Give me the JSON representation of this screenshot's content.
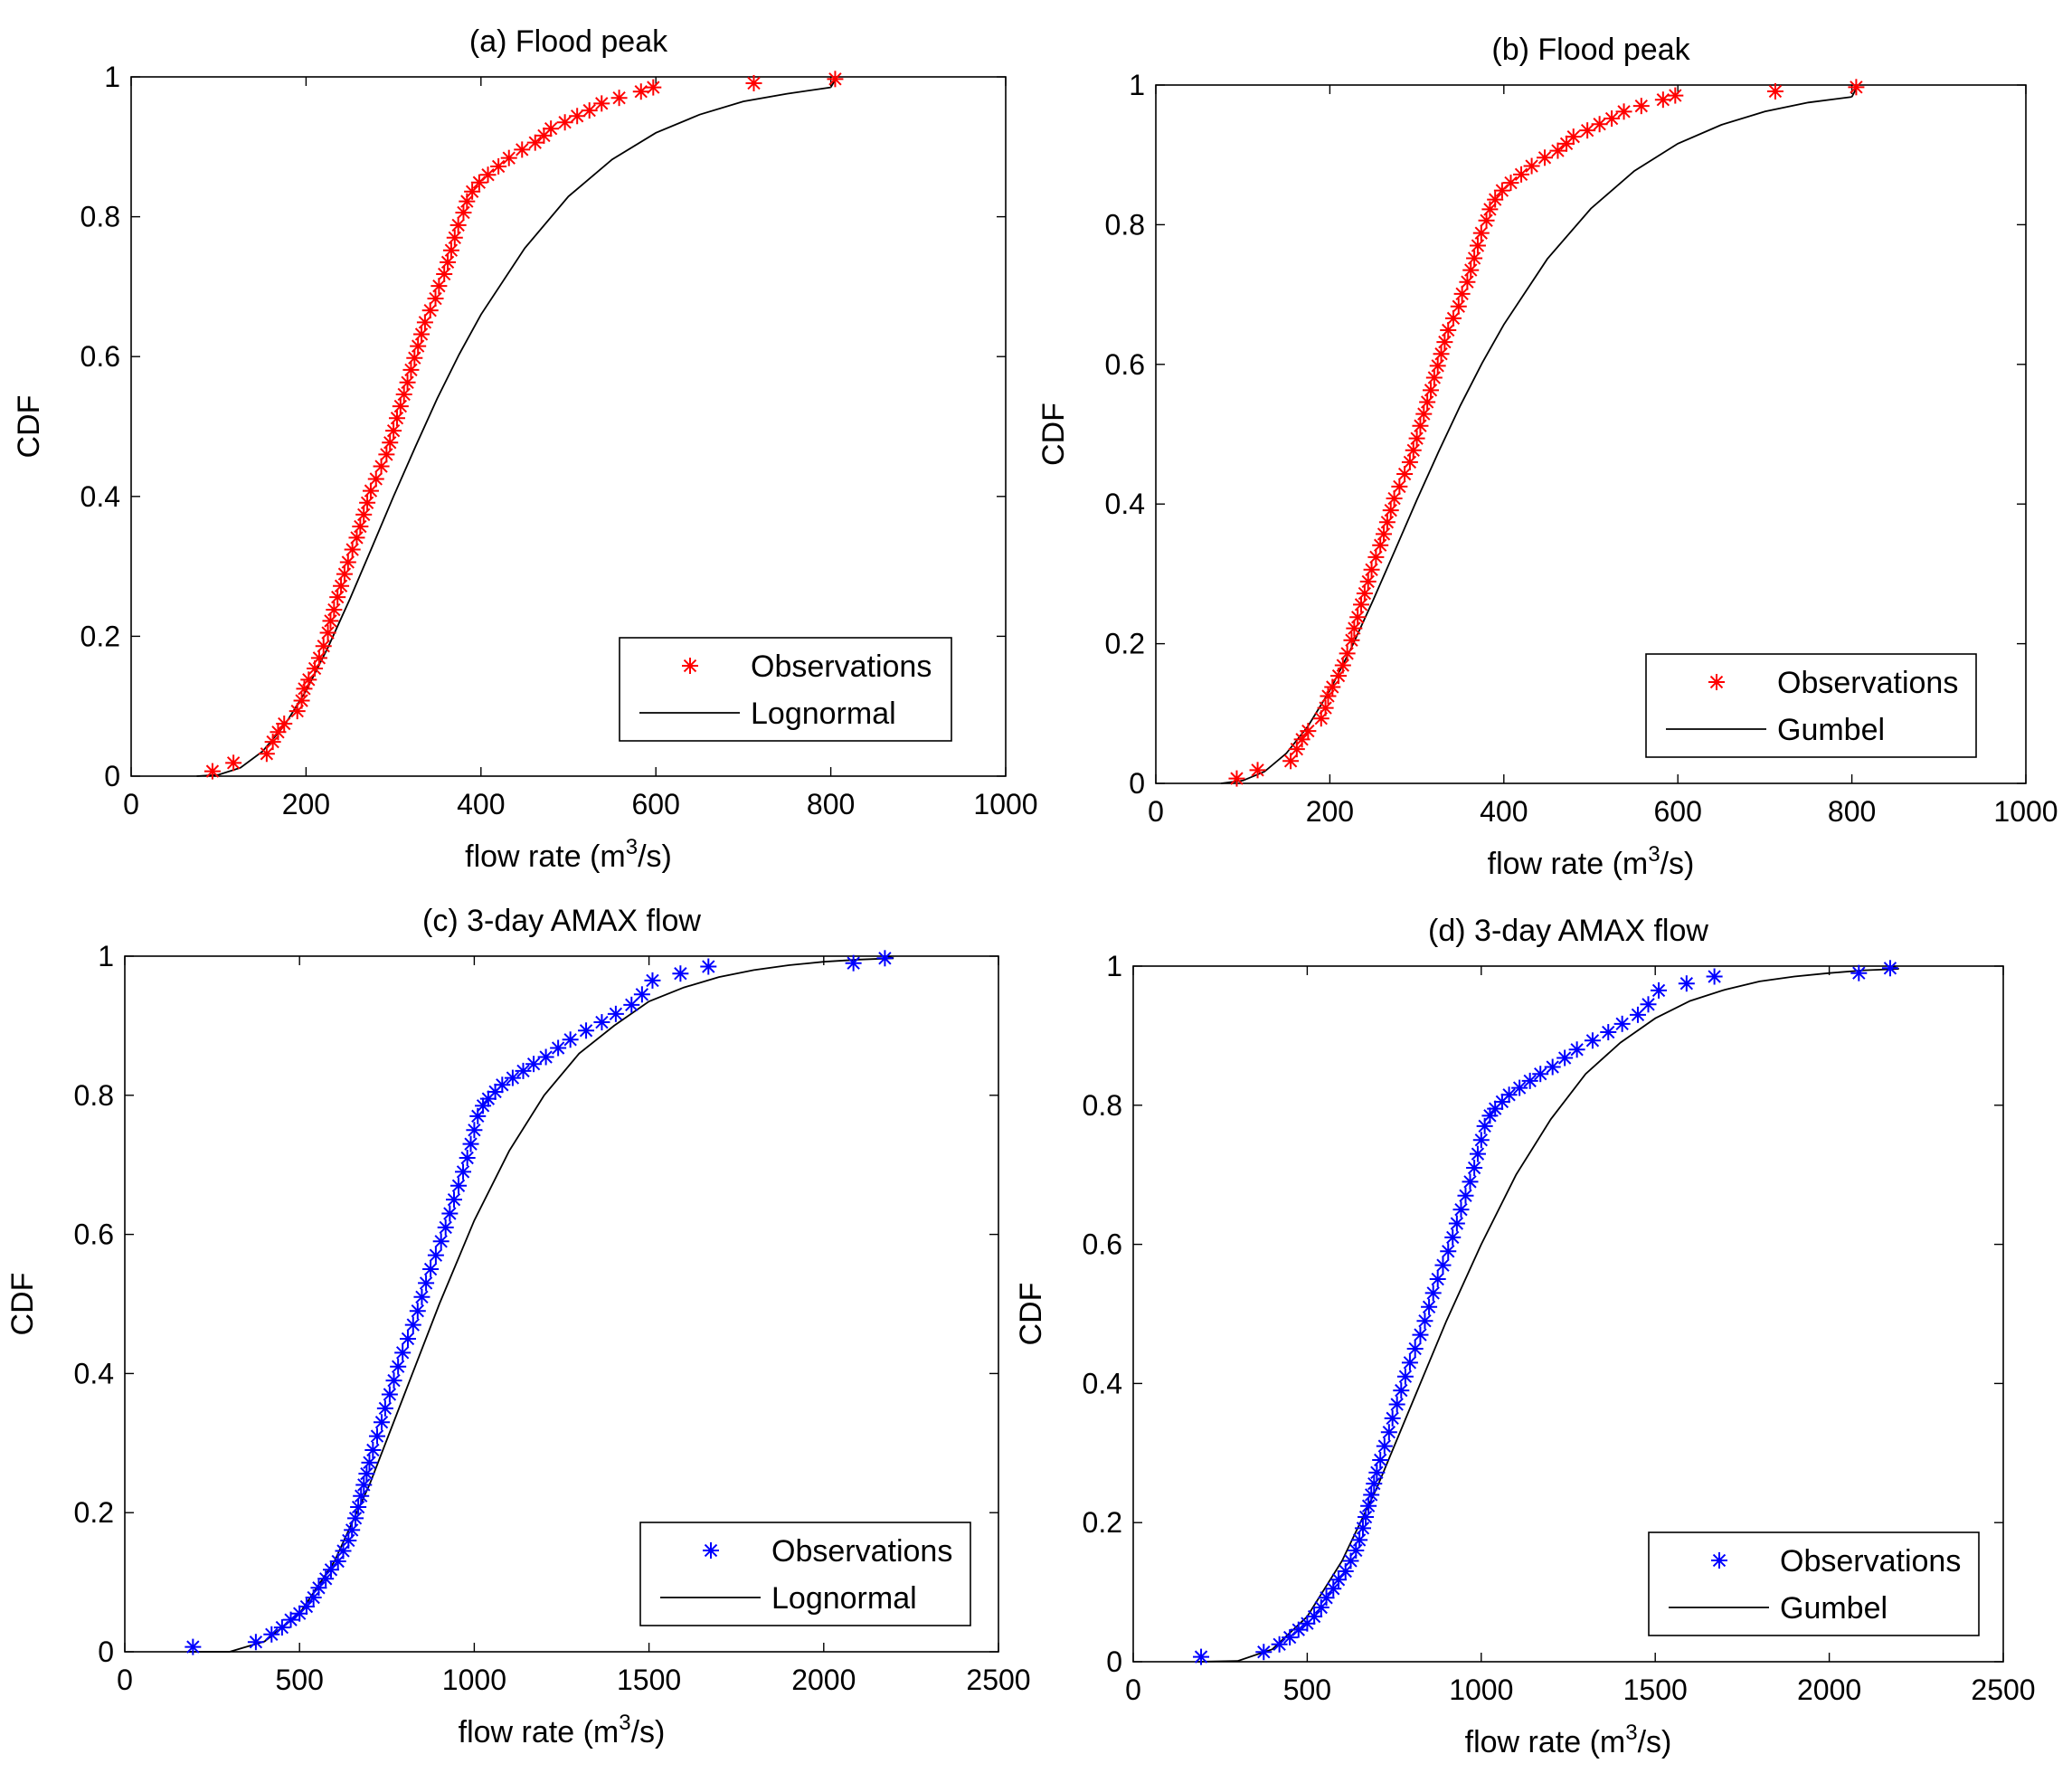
{
  "chart_data": [
    {
      "id": "a",
      "type": "scatter",
      "title": "(a) Flood peak",
      "xlabel": "flow rate (m",
      "xlabel_sup": "3",
      "xlabel_end": "/s)",
      "ylabel": "CDF",
      "xlim": [
        0,
        1000
      ],
      "ylim": [
        0,
        1
      ],
      "xticks": [
        0,
        200,
        400,
        600,
        800,
        1000
      ],
      "xtick_labels": [
        "0",
        "200",
        "400",
        "600",
        "800",
        "1000"
      ],
      "yticks": [
        0,
        0.2,
        0.4,
        0.6,
        0.8,
        1
      ],
      "ytick_labels": [
        "0",
        "0.2",
        "0.4",
        "0.6",
        "0.8",
        "1"
      ],
      "legend_position": "bottom-right",
      "marker_color": "#ff0000",
      "observations": {
        "name": "Observations",
        "x": [
          93,
          117,
          155,
          162,
          168,
          175,
          190,
          195,
          198,
          203,
          210,
          215,
          220,
          225,
          228,
          232,
          236,
          240,
          244,
          248,
          253,
          258,
          262,
          266,
          270,
          274,
          280,
          286,
          292,
          296,
          300,
          304,
          308,
          312,
          316,
          320,
          324,
          328,
          332,
          336,
          342,
          348,
          352,
          358,
          362,
          366,
          370,
          374,
          380,
          384,
          390,
          398,
          408,
          420,
          432,
          447,
          462,
          472,
          480,
          496,
          510,
          524,
          538,
          558,
          583,
          597,
          712,
          805
        ],
        "y": [
          0.007,
          0.019,
          0.032,
          0.049,
          0.063,
          0.075,
          0.093,
          0.108,
          0.125,
          0.138,
          0.154,
          0.169,
          0.186,
          0.205,
          0.222,
          0.238,
          0.256,
          0.272,
          0.289,
          0.306,
          0.324,
          0.341,
          0.357,
          0.374,
          0.391,
          0.408,
          0.425,
          0.443,
          0.46,
          0.477,
          0.494,
          0.512,
          0.529,
          0.546,
          0.563,
          0.581,
          0.598,
          0.615,
          0.632,
          0.649,
          0.666,
          0.683,
          0.701,
          0.718,
          0.735,
          0.752,
          0.77,
          0.788,
          0.806,
          0.822,
          0.836,
          0.849,
          0.86,
          0.872,
          0.884,
          0.896,
          0.906,
          0.916,
          0.926,
          0.935,
          0.944,
          0.952,
          0.962,
          0.97,
          0.979,
          0.985,
          0.991,
          0.997
        ]
      },
      "fit": {
        "name": "Lognormal",
        "x": [
          75,
          100,
          125,
          150,
          175,
          200,
          225,
          250,
          275,
          300,
          325,
          350,
          375,
          400,
          450,
          500,
          550,
          600,
          650,
          700,
          750,
          800
        ],
        "y": [
          0.0,
          0.002,
          0.012,
          0.035,
          0.072,
          0.122,
          0.184,
          0.253,
          0.326,
          0.4,
          0.471,
          0.54,
          0.603,
          0.66,
          0.755,
          0.829,
          0.882,
          0.92,
          0.946,
          0.965,
          0.976,
          0.985
        ]
      }
    },
    {
      "id": "b",
      "type": "scatter",
      "title": "(b) Flood peak",
      "xlabel": "flow rate (m",
      "xlabel_sup": "3",
      "xlabel_end": "/s)",
      "ylabel": "CDF",
      "xlim": [
        0,
        1000
      ],
      "ylim": [
        0,
        1
      ],
      "xticks": [
        0,
        200,
        400,
        600,
        800,
        1000
      ],
      "xtick_labels": [
        "0",
        "200",
        "400",
        "600",
        "800",
        "1000"
      ],
      "yticks": [
        0,
        0.2,
        0.4,
        0.6,
        0.8,
        1
      ],
      "ytick_labels": [
        "0",
        "0.2",
        "0.4",
        "0.6",
        "0.8",
        "1"
      ],
      "legend_position": "bottom-right",
      "marker_color": "#ff0000",
      "observations": {
        "name": "Observations",
        "x": [
          93,
          117,
          155,
          162,
          168,
          175,
          190,
          195,
          198,
          203,
          210,
          215,
          220,
          225,
          228,
          232,
          236,
          240,
          244,
          248,
          253,
          258,
          262,
          266,
          270,
          274,
          280,
          286,
          292,
          296,
          300,
          304,
          308,
          312,
          316,
          320,
          324,
          328,
          332,
          336,
          342,
          348,
          352,
          358,
          362,
          366,
          370,
          374,
          380,
          384,
          390,
          398,
          408,
          420,
          432,
          447,
          462,
          472,
          480,
          496,
          510,
          524,
          538,
          558,
          583,
          597,
          712,
          805
        ],
        "y": [
          0.007,
          0.019,
          0.032,
          0.049,
          0.063,
          0.075,
          0.093,
          0.108,
          0.125,
          0.138,
          0.154,
          0.169,
          0.186,
          0.205,
          0.222,
          0.238,
          0.256,
          0.272,
          0.289,
          0.306,
          0.324,
          0.341,
          0.357,
          0.374,
          0.391,
          0.408,
          0.425,
          0.443,
          0.46,
          0.477,
          0.494,
          0.512,
          0.529,
          0.546,
          0.563,
          0.581,
          0.598,
          0.615,
          0.632,
          0.649,
          0.666,
          0.683,
          0.701,
          0.718,
          0.735,
          0.752,
          0.77,
          0.788,
          0.806,
          0.822,
          0.836,
          0.849,
          0.86,
          0.872,
          0.884,
          0.896,
          0.906,
          0.916,
          0.926,
          0.935,
          0.944,
          0.952,
          0.962,
          0.97,
          0.979,
          0.985,
          0.991,
          0.997
        ]
      },
      "fit": {
        "name": "Gumbel",
        "x": [
          75,
          100,
          125,
          150,
          175,
          200,
          225,
          250,
          275,
          300,
          325,
          350,
          375,
          400,
          450,
          500,
          550,
          600,
          650,
          700,
          750,
          800
        ],
        "y": [
          0.0,
          0.004,
          0.017,
          0.043,
          0.082,
          0.133,
          0.195,
          0.263,
          0.334,
          0.406,
          0.475,
          0.541,
          0.602,
          0.657,
          0.751,
          0.823,
          0.877,
          0.916,
          0.943,
          0.962,
          0.975,
          0.983
        ]
      }
    },
    {
      "id": "c",
      "type": "scatter",
      "title": "(c) 3-day AMAX flow",
      "xlabel": "flow rate (m",
      "xlabel_sup": "3",
      "xlabel_end": "/s)",
      "ylabel": "CDF",
      "xlim": [
        0,
        2500
      ],
      "ylim": [
        0,
        1
      ],
      "xticks": [
        0,
        500,
        1000,
        1500,
        2000,
        2500
      ],
      "xtick_labels": [
        "0",
        "500",
        "1000",
        "1500",
        "2000",
        "2500"
      ],
      "yticks": [
        0,
        0.2,
        0.4,
        0.6,
        0.8,
        1
      ],
      "ytick_labels": [
        "0",
        "0.2",
        "0.4",
        "0.6",
        "0.8",
        "1"
      ],
      "legend_position": "bottom-right",
      "marker_color": "#0000ff",
      "observations": {
        "name": "Observations",
        "x": [
          195,
          375,
          420,
          450,
          475,
          500,
          520,
          540,
          555,
          575,
          590,
          610,
          625,
          640,
          650,
          660,
          668,
          676,
          684,
          692,
          700,
          710,
          722,
          735,
          745,
          758,
          770,
          782,
          795,
          810,
          825,
          838,
          850,
          862,
          875,
          890,
          905,
          918,
          930,
          942,
          955,
          968,
          980,
          990,
          1000,
          1010,
          1025,
          1040,
          1060,
          1080,
          1110,
          1140,
          1170,
          1205,
          1240,
          1275,
          1320,
          1365,
          1405,
          1450,
          1480,
          1510,
          1590,
          1670,
          2085,
          2175
        ],
        "y": [
          0.007,
          0.014,
          0.025,
          0.035,
          0.046,
          0.055,
          0.065,
          0.078,
          0.092,
          0.105,
          0.118,
          0.13,
          0.145,
          0.16,
          0.175,
          0.192,
          0.208,
          0.224,
          0.24,
          0.256,
          0.272,
          0.29,
          0.31,
          0.33,
          0.35,
          0.37,
          0.39,
          0.41,
          0.43,
          0.45,
          0.47,
          0.49,
          0.51,
          0.53,
          0.55,
          0.57,
          0.59,
          0.61,
          0.63,
          0.65,
          0.67,
          0.69,
          0.71,
          0.73,
          0.75,
          0.77,
          0.785,
          0.795,
          0.805,
          0.815,
          0.825,
          0.835,
          0.845,
          0.855,
          0.868,
          0.88,
          0.893,
          0.905,
          0.917,
          0.93,
          0.945,
          0.965,
          0.975,
          0.985,
          0.99,
          0.997
        ]
      },
      "fit": {
        "name": "Lognormal",
        "x": [
          180,
          300,
          400,
          500,
          600,
          700,
          800,
          900,
          1000,
          1100,
          1200,
          1300,
          1400,
          1500,
          1600,
          1700,
          1800,
          1900,
          2000,
          2100,
          2200
        ],
        "y": [
          0.0,
          0.0,
          0.015,
          0.055,
          0.13,
          0.24,
          0.37,
          0.5,
          0.62,
          0.72,
          0.8,
          0.86,
          0.9,
          0.935,
          0.955,
          0.97,
          0.98,
          0.987,
          0.992,
          0.995,
          0.997
        ]
      }
    },
    {
      "id": "d",
      "type": "scatter",
      "title": "(d) 3-day AMAX flow",
      "xlabel": "flow rate (m",
      "xlabel_sup": "3",
      "xlabel_end": "/s)",
      "ylabel": "CDF",
      "xlim": [
        0,
        2500
      ],
      "ylim": [
        0,
        1
      ],
      "xticks": [
        0,
        500,
        1000,
        1500,
        2000,
        2500
      ],
      "xtick_labels": [
        "0",
        "500",
        "1000",
        "1500",
        "2000",
        "2500"
      ],
      "yticks": [
        0,
        0.2,
        0.4,
        0.6,
        0.8,
        1
      ],
      "ytick_labels": [
        "0",
        "0.2",
        "0.4",
        "0.6",
        "0.8",
        "1"
      ],
      "legend_position": "bottom-right",
      "marker_color": "#0000ff",
      "observations": {
        "name": "Observations",
        "x": [
          195,
          375,
          420,
          450,
          475,
          500,
          520,
          540,
          555,
          575,
          590,
          610,
          625,
          640,
          650,
          660,
          668,
          676,
          684,
          692,
          700,
          710,
          722,
          735,
          745,
          758,
          770,
          782,
          795,
          810,
          825,
          838,
          850,
          862,
          875,
          890,
          905,
          918,
          930,
          942,
          955,
          968,
          980,
          990,
          1000,
          1010,
          1025,
          1040,
          1060,
          1080,
          1110,
          1140,
          1170,
          1205,
          1240,
          1275,
          1320,
          1365,
          1405,
          1450,
          1480,
          1510,
          1590,
          1670,
          2085,
          2175
        ],
        "y": [
          0.007,
          0.014,
          0.025,
          0.035,
          0.046,
          0.055,
          0.065,
          0.078,
          0.092,
          0.105,
          0.118,
          0.13,
          0.145,
          0.16,
          0.175,
          0.192,
          0.208,
          0.224,
          0.24,
          0.256,
          0.272,
          0.29,
          0.31,
          0.33,
          0.35,
          0.37,
          0.39,
          0.41,
          0.43,
          0.45,
          0.47,
          0.49,
          0.51,
          0.53,
          0.55,
          0.57,
          0.59,
          0.61,
          0.63,
          0.65,
          0.67,
          0.69,
          0.71,
          0.73,
          0.75,
          0.77,
          0.785,
          0.795,
          0.805,
          0.815,
          0.825,
          0.835,
          0.845,
          0.855,
          0.868,
          0.88,
          0.893,
          0.905,
          0.917,
          0.93,
          0.945,
          0.965,
          0.975,
          0.985,
          0.99,
          0.997
        ]
      },
      "fit": {
        "name": "Gumbel",
        "x": [
          180,
          300,
          400,
          500,
          600,
          700,
          800,
          900,
          1000,
          1100,
          1200,
          1300,
          1400,
          1500,
          1600,
          1700,
          1800,
          1900,
          2000,
          2100,
          2200
        ],
        "y": [
          0.0,
          0.001,
          0.018,
          0.065,
          0.145,
          0.25,
          0.37,
          0.49,
          0.6,
          0.7,
          0.78,
          0.845,
          0.89,
          0.925,
          0.95,
          0.966,
          0.978,
          0.985,
          0.99,
          0.994,
          0.996
        ]
      }
    }
  ]
}
